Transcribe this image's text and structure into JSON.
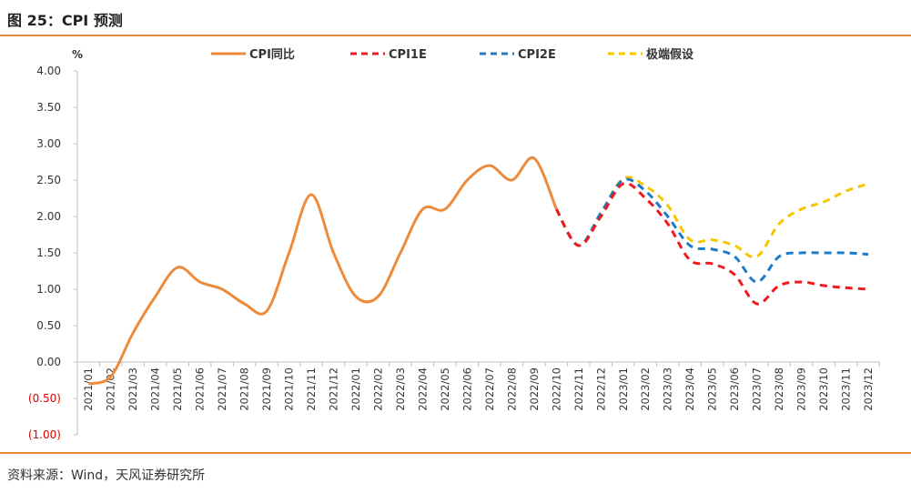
{
  "figure": {
    "title": "图 25：CPI 预测",
    "source": "资料来源：Wind，天风证券研究所"
  },
  "colors": {
    "accent_rule": "#E8883A",
    "axis": "#BFBFBF",
    "tick_text": "#333333",
    "negative_tick": "#E00000"
  },
  "chart_data": {
    "type": "line",
    "ylabel": "%",
    "ylim": [
      -1.0,
      4.0
    ],
    "yticks": [
      4.0,
      3.5,
      3.0,
      2.5,
      2.0,
      1.5,
      1.0,
      0.5,
      0.0,
      -0.5,
      -1.0
    ],
    "ytick_labels": [
      "4.00",
      "3.50",
      "3.00",
      "2.50",
      "2.00",
      "1.50",
      "1.00",
      "0.50",
      "0.00",
      "(0.50)",
      "(1.00)"
    ],
    "categories": [
      "2021/01",
      "2021/02",
      "2021/03",
      "2021/04",
      "2021/05",
      "2021/06",
      "2021/07",
      "2021/08",
      "2021/09",
      "2021/10",
      "2021/11",
      "2021/12",
      "2022/01",
      "2022/02",
      "2022/03",
      "2022/04",
      "2022/05",
      "2022/06",
      "2022/07",
      "2022/08",
      "2022/09",
      "2022/10",
      "2022/11",
      "2022/12",
      "2023/01",
      "2023/02",
      "2023/03",
      "2023/04",
      "2023/05",
      "2023/06",
      "2023/07",
      "2023/08",
      "2023/09",
      "2023/10",
      "2023/11",
      "2023/12"
    ],
    "legend_position": "top",
    "grid": false,
    "series": [
      {
        "name": "CPI同比",
        "color": "#ED8B3C",
        "dash": "solid",
        "values": [
          -0.3,
          -0.2,
          0.4,
          0.9,
          1.3,
          1.1,
          1.0,
          0.8,
          0.7,
          1.5,
          2.3,
          1.5,
          0.9,
          0.9,
          1.5,
          2.1,
          2.1,
          2.5,
          2.7,
          2.5,
          2.8,
          2.1,
          null,
          null,
          null,
          null,
          null,
          null,
          null,
          null,
          null,
          null,
          null,
          null,
          null,
          null
        ]
      },
      {
        "name": "CPI1E",
        "color": "#F2191E",
        "dash": "dashed",
        "values": [
          null,
          null,
          null,
          null,
          null,
          null,
          null,
          null,
          null,
          null,
          null,
          null,
          null,
          null,
          null,
          null,
          null,
          null,
          null,
          null,
          null,
          2.1,
          1.6,
          2.0,
          2.45,
          2.25,
          1.9,
          1.4,
          1.35,
          1.2,
          0.8,
          1.05,
          1.1,
          1.05,
          1.02,
          1.0
        ]
      },
      {
        "name": "CPI2E",
        "color": "#1E7AC6",
        "dash": "dashed",
        "values": [
          null,
          null,
          null,
          null,
          null,
          null,
          null,
          null,
          null,
          null,
          null,
          null,
          null,
          null,
          null,
          null,
          null,
          null,
          null,
          null,
          null,
          2.1,
          1.6,
          2.05,
          2.5,
          2.35,
          2.0,
          1.6,
          1.55,
          1.45,
          1.1,
          1.45,
          1.5,
          1.5,
          1.5,
          1.48
        ]
      },
      {
        "name": "极端假设",
        "color": "#F7C600",
        "dash": "dashed",
        "values": [
          null,
          null,
          null,
          null,
          null,
          null,
          null,
          null,
          null,
          null,
          null,
          null,
          null,
          null,
          null,
          null,
          null,
          null,
          null,
          null,
          null,
          2.1,
          1.6,
          2.05,
          2.52,
          2.42,
          2.15,
          1.68,
          1.68,
          1.6,
          1.45,
          1.9,
          2.1,
          2.2,
          2.35,
          2.45
        ]
      }
    ]
  }
}
